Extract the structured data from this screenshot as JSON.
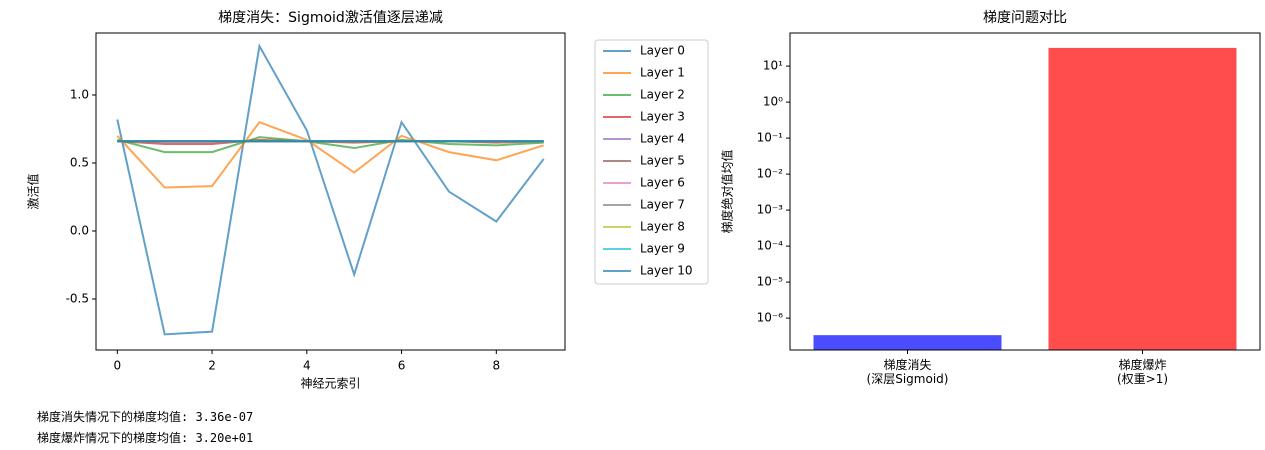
{
  "chart_data": [
    {
      "type": "line",
      "title": "梯度消失：Sigmoid激活值逐层递减",
      "xlabel": "神经元索引",
      "ylabel": "激活值",
      "x": [
        0,
        1,
        2,
        3,
        4,
        5,
        6,
        7,
        8,
        9
      ],
      "xlim": [
        -0.45,
        9.45
      ],
      "xticks": [
        0,
        2,
        4,
        6,
        8
      ],
      "ylim": [
        -0.875,
        1.456
      ],
      "yticks": [
        -0.5,
        {
          "value": 0,
          "label": "0.0"
        },
        0.5,
        {
          "value": 1,
          "label": "1.0"
        }
      ],
      "legend": "outside-upper-right",
      "series": [
        {
          "name": "Layer 0",
          "color": "#1f77b4",
          "values": [
            0.82,
            -0.76,
            -0.74,
            1.36,
            0.74,
            -0.32,
            0.8,
            0.29,
            0.07,
            0.53
          ]
        },
        {
          "name": "Layer 1",
          "color": "#ff7f0e",
          "values": [
            0.7,
            0.32,
            0.33,
            0.8,
            0.67,
            0.43,
            0.7,
            0.58,
            0.52,
            0.63
          ]
        },
        {
          "name": "Layer 2",
          "color": "#2ca02c",
          "values": [
            0.67,
            0.58,
            0.58,
            0.69,
            0.66,
            0.61,
            0.67,
            0.64,
            0.63,
            0.65
          ]
        },
        {
          "name": "Layer 3",
          "color": "#d62728",
          "values": [
            0.66,
            0.64,
            0.64,
            0.67,
            0.66,
            0.65,
            0.66,
            0.66,
            0.65,
            0.66
          ]
        },
        {
          "name": "Layer 4",
          "color": "#9467bd",
          "values": [
            0.66,
            0.655,
            0.655,
            0.66,
            0.66,
            0.658,
            0.66,
            0.66,
            0.658,
            0.66
          ]
        },
        {
          "name": "Layer 5",
          "color": "#8c564b",
          "values": [
            0.66,
            0.659,
            0.659,
            0.66,
            0.66,
            0.659,
            0.66,
            0.66,
            0.659,
            0.66
          ]
        },
        {
          "name": "Layer 6",
          "color": "#e377c2",
          "values": [
            0.66,
            0.66,
            0.66,
            0.66,
            0.66,
            0.66,
            0.66,
            0.66,
            0.66,
            0.66
          ]
        },
        {
          "name": "Layer 7",
          "color": "#7f7f7f",
          "values": [
            0.66,
            0.66,
            0.66,
            0.66,
            0.66,
            0.66,
            0.66,
            0.66,
            0.66,
            0.66
          ]
        },
        {
          "name": "Layer 8",
          "color": "#bcbd22",
          "values": [
            0.66,
            0.66,
            0.66,
            0.66,
            0.66,
            0.66,
            0.66,
            0.66,
            0.66,
            0.66
          ]
        },
        {
          "name": "Layer 9",
          "color": "#17becf",
          "values": [
            0.66,
            0.66,
            0.66,
            0.66,
            0.66,
            0.66,
            0.66,
            0.66,
            0.66,
            0.66
          ]
        },
        {
          "name": "Layer 10",
          "color": "#1f77b4",
          "values": [
            0.66,
            0.66,
            0.66,
            0.66,
            0.66,
            0.66,
            0.66,
            0.66,
            0.66,
            0.66
          ]
        }
      ]
    },
    {
      "type": "bar",
      "title": "梯度问题对比",
      "ylabel": "梯度绝对值均值",
      "log_scale": true,
      "categories": [
        "梯度消失\n(深层Sigmoid)",
        "梯度爆炸\n(权重>1)"
      ],
      "values": [
        3.36e-07,
        32.0
      ],
      "colors": [
        "#0000ff",
        "#ff0000"
      ],
      "alpha": 0.7,
      "ylim": [
        1.3e-07,
        83
      ],
      "yticks": [
        {
          "value": 1e-06,
          "label": "10⁻⁶"
        },
        {
          "value": 1e-05,
          "label": "10⁻⁵"
        },
        {
          "value": 0.0001,
          "label": "10⁻⁴"
        },
        {
          "value": 0.001,
          "label": "10⁻³"
        },
        {
          "value": 0.01,
          "label": "10⁻²"
        },
        {
          "value": 0.1,
          "label": "10⁻¹"
        },
        {
          "value": 1,
          "label": "10⁰"
        },
        {
          "value": 10,
          "label": "10¹"
        }
      ]
    }
  ],
  "output_lines": [
    "梯度消失情况下的梯度均值: 3.36e-07",
    "梯度爆炸情况下的梯度均值: 3.20e+01"
  ]
}
